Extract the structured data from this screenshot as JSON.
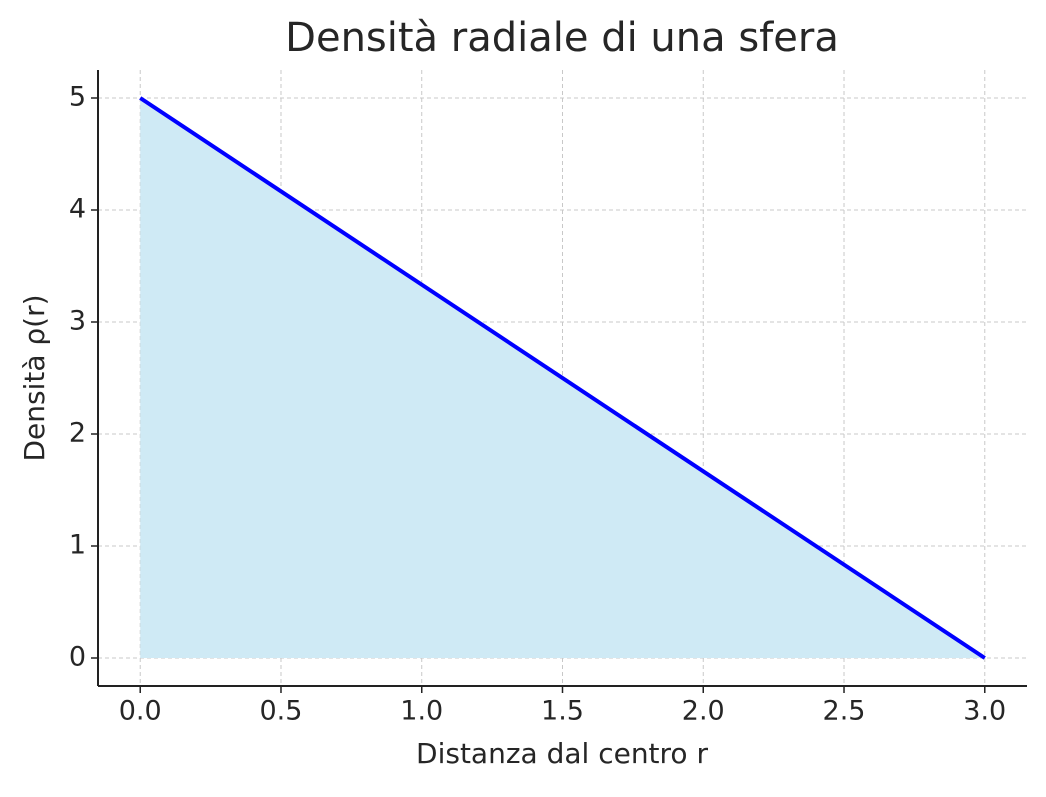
{
  "chart_data": {
    "type": "area",
    "title": "Densità radiale di una sfera",
    "x_label": "Distanza dal centro r",
    "y_label": "Densità ρ(r)",
    "x": [
      0,
      3
    ],
    "series": [
      {
        "name": "ρ(r)",
        "color": "#0000ff",
        "fill_color": "#cfeaf5",
        "values": [
          5,
          0
        ]
      }
    ],
    "xlim": [
      -0.15,
      3.15
    ],
    "ylim": [
      -0.25,
      5.25
    ],
    "xticks": [
      {
        "value": 0,
        "label": "0.0"
      },
      0.5,
      {
        "value": 1,
        "label": "1.0"
      },
      1.5,
      {
        "value": 2,
        "label": "2.0"
      },
      2.5,
      {
        "value": 3,
        "label": "3.0"
      }
    ],
    "yticks": [
      0,
      1,
      2,
      3,
      4,
      5
    ],
    "grid": true
  }
}
